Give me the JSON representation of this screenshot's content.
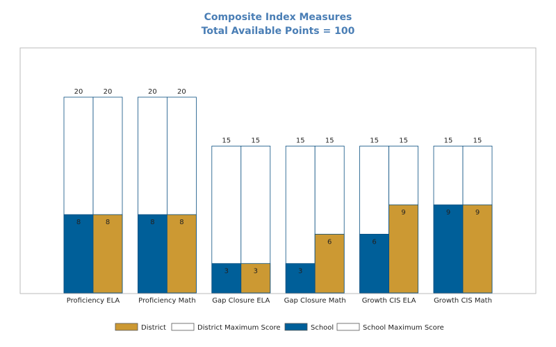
{
  "chart_data": {
    "type": "bar",
    "title": "Composite Index Measures",
    "subtitle": "Total Available Points = 100",
    "categories": [
      "Proficiency ELA",
      "Proficiency Math",
      "Gap Closure ELA",
      "Gap Closure Math",
      "Growth CIS ELA",
      "Growth CIS Math"
    ],
    "series": [
      {
        "name": "School",
        "values": [
          8,
          8,
          3,
          3,
          6,
          9
        ],
        "max_values": [
          20,
          20,
          15,
          15,
          15,
          15
        ],
        "color": "#005f99"
      },
      {
        "name": "District",
        "values": [
          8,
          8,
          3,
          6,
          9,
          9
        ],
        "max_values": [
          20,
          20,
          15,
          15,
          15,
          15
        ],
        "color": "#cc9933"
      }
    ],
    "legend": {
      "placement": "bottom",
      "items": [
        {
          "name": "District",
          "color": "#cc9933"
        },
        {
          "name": "District Maximum Score",
          "color": "#ffffff"
        },
        {
          "name": "School",
          "color": "#005f99"
        },
        {
          "name": "School Maximum Score",
          "color": "#ffffff"
        }
      ]
    },
    "ylim": [
      0,
      20
    ],
    "grid": false
  }
}
